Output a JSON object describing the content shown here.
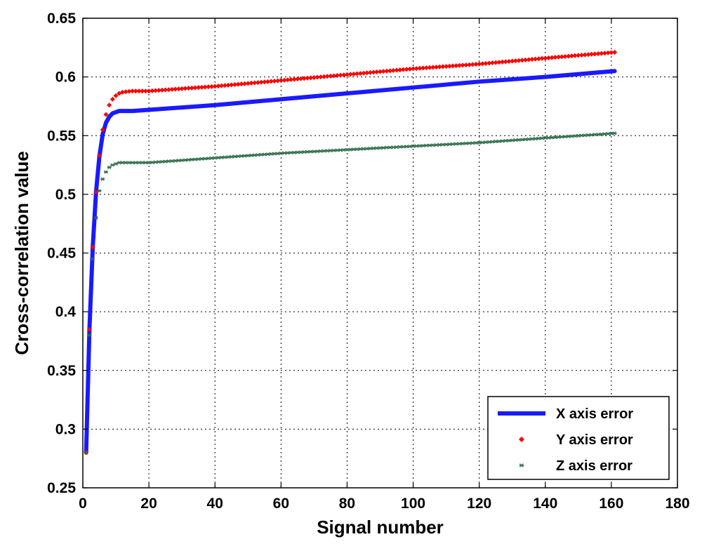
{
  "chart_data": {
    "type": "line",
    "title": "",
    "xlabel": "Signal number",
    "ylabel": "Cross-correlation value",
    "xlim": [
      0,
      180
    ],
    "ylim": [
      0.25,
      0.65
    ],
    "x_ticks": [
      0,
      20,
      40,
      60,
      80,
      100,
      120,
      140,
      160,
      180
    ],
    "y_ticks": [
      0.25,
      0.3,
      0.35,
      0.4,
      0.45,
      0.5,
      0.55,
      0.6,
      0.65
    ],
    "grid": true,
    "legend_position": "bottom-right",
    "series": [
      {
        "name": "X axis error",
        "style": "line",
        "color": "#1a1aff",
        "x": [
          1,
          2,
          3,
          4,
          5,
          6,
          7,
          8,
          9,
          10,
          11,
          12,
          15,
          20,
          40,
          60,
          80,
          100,
          120,
          140,
          161
        ],
        "y": [
          0.28,
          0.385,
          0.455,
          0.502,
          0.532,
          0.551,
          0.561,
          0.566,
          0.569,
          0.57,
          0.571,
          0.571,
          0.571,
          0.572,
          0.576,
          0.581,
          0.586,
          0.591,
          0.596,
          0.6,
          0.605
        ]
      },
      {
        "name": "Y axis error",
        "style": "markers",
        "marker": "diamond",
        "color": "#ff0000",
        "x": [
          1,
          2,
          3,
          4,
          5,
          6,
          7,
          8,
          9,
          10,
          11,
          12,
          15,
          20,
          40,
          60,
          80,
          100,
          120,
          140,
          161
        ],
        "y": [
          0.28,
          0.385,
          0.455,
          0.502,
          0.533,
          0.555,
          0.568,
          0.576,
          0.581,
          0.584,
          0.586,
          0.587,
          0.588,
          0.588,
          0.592,
          0.597,
          0.602,
          0.607,
          0.611,
          0.616,
          0.621
        ]
      },
      {
        "name": "Z axis error",
        "style": "markers",
        "marker": "star",
        "color": "#2e6b4a",
        "x": [
          1,
          2,
          3,
          4,
          5,
          6,
          7,
          8,
          9,
          10,
          11,
          12,
          15,
          20,
          40,
          60,
          80,
          100,
          120,
          140,
          161
        ],
        "y": [
          0.28,
          0.38,
          0.445,
          0.48,
          0.503,
          0.513,
          0.519,
          0.523,
          0.525,
          0.526,
          0.527,
          0.527,
          0.527,
          0.527,
          0.531,
          0.535,
          0.538,
          0.541,
          0.544,
          0.548,
          0.552
        ]
      }
    ]
  }
}
